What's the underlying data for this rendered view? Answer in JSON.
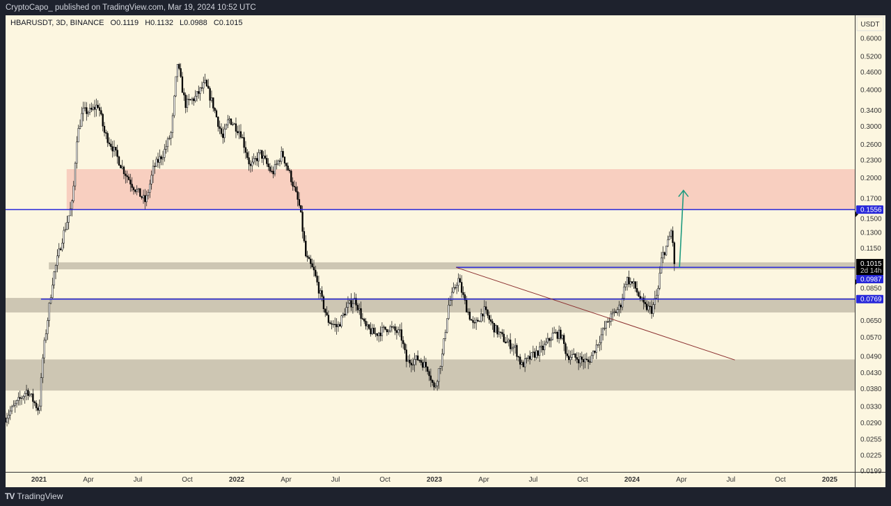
{
  "header": {
    "published": "CryptoCapo_ published on TradingView.com, Mar 19, 2024 10:52 UTC"
  },
  "legend": {
    "symbol": "HBARUSDT, 3D, BINANCE",
    "open": "O0.1119",
    "high": "H0.1132",
    "low": "L0.0988",
    "close": "C0.1015"
  },
  "footer": {
    "logo": "TV",
    "brand": "TradingView"
  },
  "colors": {
    "background": "#fcf6e0",
    "frame": "#1e222d",
    "level_line": "#2727d9",
    "badge": "#2727d9",
    "resistance_zone": "#f8cfc0",
    "support_zone": "#cdc6b3",
    "trendline": "#8b2e2e",
    "arrow": "#1d9a7f",
    "candle_up": "#ffffff",
    "candle_down": "#000000"
  },
  "chart_data": {
    "type": "candlestick",
    "symbol": "HBARUSDT",
    "interval": "3D",
    "scale": "log",
    "currency": "USDT",
    "ylim": [
      0.0199,
      0.62
    ],
    "xlim": [
      2020.83,
      2025.1
    ],
    "price_ticks": [
      "0.6000",
      "0.5200",
      "0.4600",
      "0.4000",
      "0.3400",
      "0.3000",
      "0.2600",
      "0.2300",
      "0.2000",
      "0.1700",
      "0.1500",
      "0.1300",
      "0.1150",
      "0.0850",
      "0.0650",
      "0.0570",
      "0.0490",
      "0.0430",
      "0.0380",
      "0.0330",
      "0.0290",
      "0.0255",
      "0.0225",
      "0.0199"
    ],
    "time_ticks": [
      {
        "t": 2021.0,
        "label": "2021",
        "bold": true
      },
      {
        "t": 2021.25,
        "label": "Apr"
      },
      {
        "t": 2021.5,
        "label": "Jul"
      },
      {
        "t": 2021.75,
        "label": "Oct"
      },
      {
        "t": 2022.0,
        "label": "2022",
        "bold": true
      },
      {
        "t": 2022.25,
        "label": "Apr"
      },
      {
        "t": 2022.5,
        "label": "Jul"
      },
      {
        "t": 2022.75,
        "label": "Oct"
      },
      {
        "t": 2023.0,
        "label": "2023",
        "bold": true
      },
      {
        "t": 2023.25,
        "label": "Apr"
      },
      {
        "t": 2023.5,
        "label": "Jul"
      },
      {
        "t": 2023.75,
        "label": "Oct"
      },
      {
        "t": 2024.0,
        "label": "2024",
        "bold": true
      },
      {
        "t": 2024.25,
        "label": "Apr"
      },
      {
        "t": 2024.5,
        "label": "Jul"
      },
      {
        "t": 2024.75,
        "label": "Oct"
      },
      {
        "t": 2025.0,
        "label": "2025",
        "bold": true
      }
    ],
    "price_path": [
      [
        2020.83,
        0.0302
      ],
      [
        2020.94,
        0.0376
      ],
      [
        2021.0,
        0.0319
      ],
      [
        2021.02,
        0.0495
      ],
      [
        2021.07,
        0.0904
      ],
      [
        2021.12,
        0.126
      ],
      [
        2021.17,
        0.165
      ],
      [
        2021.19,
        0.271
      ],
      [
        2021.22,
        0.337
      ],
      [
        2021.26,
        0.337
      ],
      [
        2021.3,
        0.356
      ],
      [
        2021.33,
        0.286
      ],
      [
        2021.37,
        0.256
      ],
      [
        2021.42,
        0.217
      ],
      [
        2021.47,
        0.19
      ],
      [
        2021.54,
        0.165
      ],
      [
        2021.58,
        0.217
      ],
      [
        2021.63,
        0.243
      ],
      [
        2021.67,
        0.286
      ],
      [
        2021.7,
        0.495
      ],
      [
        2021.74,
        0.356
      ],
      [
        2021.79,
        0.376
      ],
      [
        2021.84,
        0.42
      ],
      [
        2021.88,
        0.356
      ],
      [
        2021.93,
        0.271
      ],
      [
        2021.96,
        0.319
      ],
      [
        2022.02,
        0.286
      ],
      [
        2022.07,
        0.217
      ],
      [
        2022.12,
        0.243
      ],
      [
        2022.18,
        0.206
      ],
      [
        2022.23,
        0.243
      ],
      [
        2022.28,
        0.195
      ],
      [
        2022.32,
        0.157
      ],
      [
        2022.35,
        0.107
      ],
      [
        2022.39,
        0.0956
      ],
      [
        2022.42,
        0.0811
      ],
      [
        2022.46,
        0.0651
      ],
      [
        2022.51,
        0.0616
      ],
      [
        2022.56,
        0.0726
      ],
      [
        2022.6,
        0.0767
      ],
      [
        2022.65,
        0.0616
      ],
      [
        2022.7,
        0.0583
      ],
      [
        2022.77,
        0.0616
      ],
      [
        2022.83,
        0.0583
      ],
      [
        2022.86,
        0.0468
      ],
      [
        2022.92,
        0.0481
      ],
      [
        2022.97,
        0.0443
      ],
      [
        2023.0,
        0.0376
      ],
      [
        2023.04,
        0.0495
      ],
      [
        2023.07,
        0.0726
      ],
      [
        2023.12,
        0.0904
      ],
      [
        2023.16,
        0.0726
      ],
      [
        2023.2,
        0.0616
      ],
      [
        2023.25,
        0.0707
      ],
      [
        2023.3,
        0.0616
      ],
      [
        2023.36,
        0.0552
      ],
      [
        2023.41,
        0.0522
      ],
      [
        2023.44,
        0.0455
      ],
      [
        2023.5,
        0.0495
      ],
      [
        2023.55,
        0.0522
      ],
      [
        2023.6,
        0.0583
      ],
      [
        2023.64,
        0.0583
      ],
      [
        2023.67,
        0.0495
      ],
      [
        2023.73,
        0.0481
      ],
      [
        2023.78,
        0.0468
      ],
      [
        2023.83,
        0.0552
      ],
      [
        2023.88,
        0.0651
      ],
      [
        2023.94,
        0.0726
      ],
      [
        2023.97,
        0.0904
      ],
      [
        2024.01,
        0.0856
      ],
      [
        2024.06,
        0.0726
      ],
      [
        2024.1,
        0.0707
      ],
      [
        2024.13,
        0.0811
      ],
      [
        2024.15,
        0.107
      ],
      [
        2024.18,
        0.119
      ],
      [
        2024.2,
        0.133
      ],
      [
        2024.21,
        0.113
      ],
      [
        2024.22,
        0.1015
      ]
    ],
    "zones": [
      {
        "name": "resistance-zone",
        "from_t": 2021.14,
        "top": 0.214,
        "bottom": 0.1556,
        "color": "#f8cfc0"
      },
      {
        "name": "support-zone-1",
        "from_t": 2021.05,
        "top": 0.1027,
        "bottom": 0.0972,
        "color": "#cdc6b3"
      },
      {
        "name": "support-zone-2",
        "from_t": 2020.83,
        "top": 0.0776,
        "bottom": 0.0692,
        "color": "#cdc6b3"
      },
      {
        "name": "support-zone-3",
        "from_t": 2020.83,
        "top": 0.0478,
        "bottom": 0.0374,
        "color": "#cdc6b3"
      }
    ],
    "levels": [
      {
        "name": "level-0-1556",
        "price": 0.1556,
        "from_t": 2020.83,
        "label": "0.1556"
      },
      {
        "name": "level-0-0987",
        "price": 0.0987,
        "from_t": 2023.11,
        "label": "0.0987"
      },
      {
        "name": "level-0-0769",
        "price": 0.0769,
        "from_t": 2021.01,
        "label": "0.0769"
      }
    ],
    "trendline": {
      "from": [
        2023.11,
        0.0987
      ],
      "to": [
        2024.52,
        0.0476
      ]
    },
    "arrow": {
      "from": [
        2024.24,
        0.0987
      ],
      "to": [
        2024.26,
        0.181
      ]
    },
    "last_price": {
      "price": 0.1015,
      "label": "0.1015",
      "countdown": "2d 14h"
    },
    "axis_markers": [
      0.15,
      0.088
    ]
  }
}
